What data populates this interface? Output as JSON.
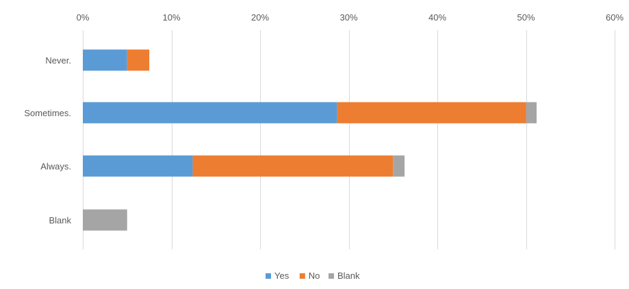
{
  "chart_data": {
    "type": "bar",
    "orientation": "horizontal",
    "stacked": true,
    "title": "",
    "xlabel": "",
    "ylabel": "",
    "categories": [
      "Never.",
      "Sometimes.",
      "Always.",
      "Blank"
    ],
    "series": [
      {
        "name": "Yes",
        "color": "#5B9BD5",
        "values": [
          5.0,
          28.7,
          12.4,
          0.0
        ]
      },
      {
        "name": "No",
        "color": "#ED7D31",
        "values": [
          2.5,
          21.3,
          22.6,
          0.0
        ]
      },
      {
        "name": "Blank",
        "color": "#A5A5A5",
        "values": [
          0.0,
          1.2,
          1.3,
          5.0
        ]
      }
    ],
    "xlim": [
      0,
      60
    ],
    "x_ticks": [
      0,
      10,
      20,
      30,
      40,
      50,
      60
    ],
    "x_tick_labels": [
      "0%",
      "10%",
      "20%",
      "30%",
      "40%",
      "50%",
      "60%"
    ],
    "x_axis_position": "top",
    "grid": "vertical",
    "grid_color": "#D9D9D9",
    "legend_position": "bottom"
  }
}
